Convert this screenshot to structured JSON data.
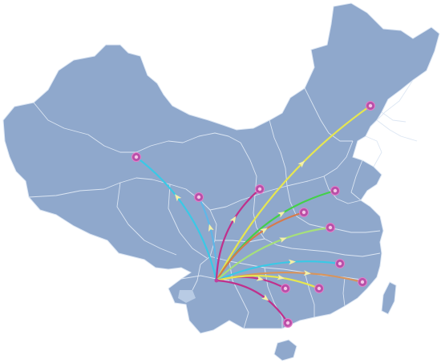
{
  "map": {
    "land_color": "#8fa8cc",
    "border_color": "#dce6f3",
    "island_color": "#8fa8cc",
    "hub": {
      "id": "hub-origin",
      "color": "#c040a0"
    },
    "nodes": [
      {
        "id": "node-northeast",
        "icon": "target-marker-icon"
      },
      {
        "id": "node-northwest",
        "icon": "target-marker-icon"
      },
      {
        "id": "node-west",
        "icon": "target-marker-icon"
      },
      {
        "id": "node-north-central",
        "icon": "target-marker-icon"
      },
      {
        "id": "node-east-1",
        "icon": "target-marker-icon"
      },
      {
        "id": "node-central-1",
        "icon": "target-marker-icon"
      },
      {
        "id": "node-east-2",
        "icon": "target-marker-icon"
      },
      {
        "id": "node-southeast-1",
        "icon": "target-marker-icon"
      },
      {
        "id": "node-southeast-2",
        "icon": "target-marker-icon"
      },
      {
        "id": "node-south-1",
        "icon": "target-marker-icon"
      },
      {
        "id": "node-south-2",
        "icon": "target-marker-icon"
      },
      {
        "id": "node-far-south",
        "icon": "target-marker-icon"
      }
    ],
    "routes": [
      {
        "to": "node-northeast",
        "color": "#e6e650"
      },
      {
        "to": "node-northwest",
        "color": "#39c9e6"
      },
      {
        "to": "node-west",
        "color": "#5fb7e8"
      },
      {
        "to": "node-north-central",
        "color": "#c0308c"
      },
      {
        "to": "node-east-1",
        "color": "#43d04a"
      },
      {
        "to": "node-central-1",
        "color": "#d77a4a"
      },
      {
        "to": "node-east-2",
        "color": "#a6e07a"
      },
      {
        "to": "node-southeast-1",
        "color": "#39c9e6"
      },
      {
        "to": "node-southeast-2",
        "color": "#d8945c"
      },
      {
        "to": "node-south-1",
        "color": "#c0308c"
      },
      {
        "to": "node-south-2",
        "color": "#e6e650"
      },
      {
        "to": "node-far-south",
        "color": "#c0308c"
      }
    ]
  }
}
